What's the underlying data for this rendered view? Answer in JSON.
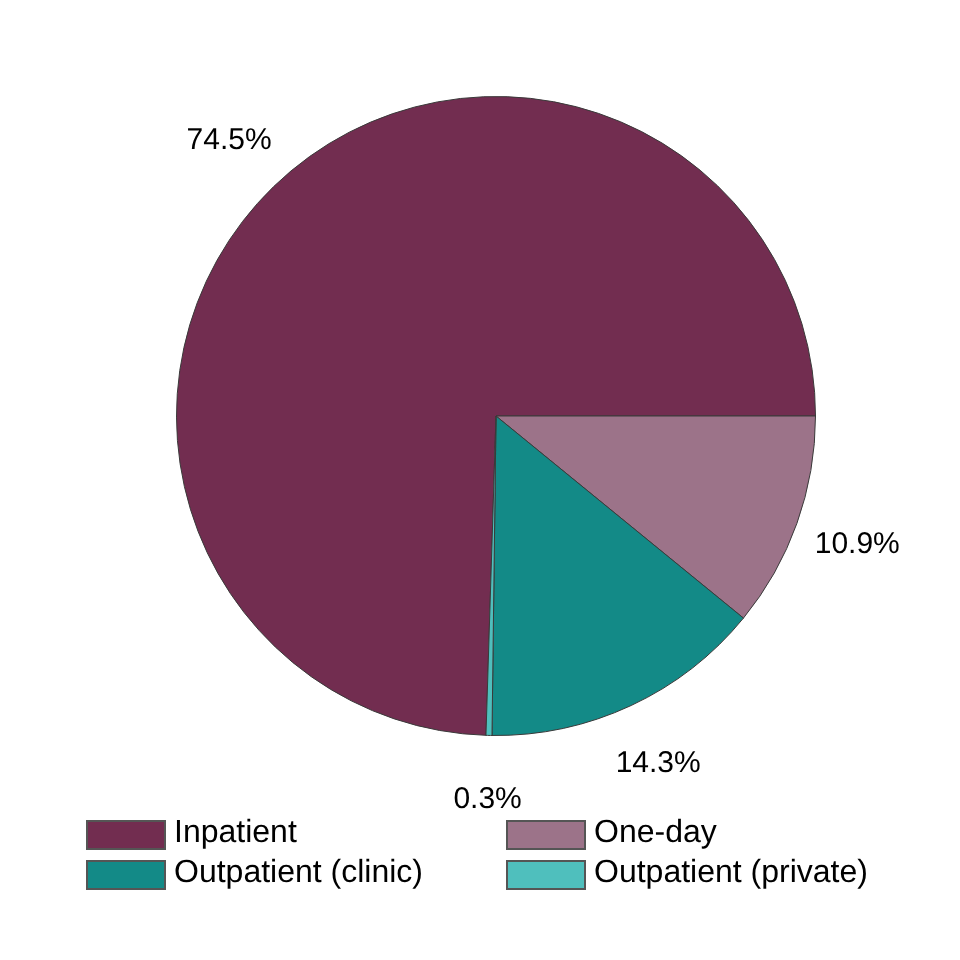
{
  "chart_data": {
    "type": "pie",
    "categories": [
      "Inpatient",
      "One-day",
      "Outpatient (clinic)",
      "Outpatient (private)"
    ],
    "values": [
      74.5,
      10.9,
      14.3,
      0.3
    ],
    "value_labels": [
      "74.5%",
      "10.9%",
      "14.3%",
      "0.3%"
    ],
    "colors": [
      "#722d50",
      "#9c7389",
      "#138a87",
      "#4fbfbd"
    ],
    "legend": "bottom"
  }
}
